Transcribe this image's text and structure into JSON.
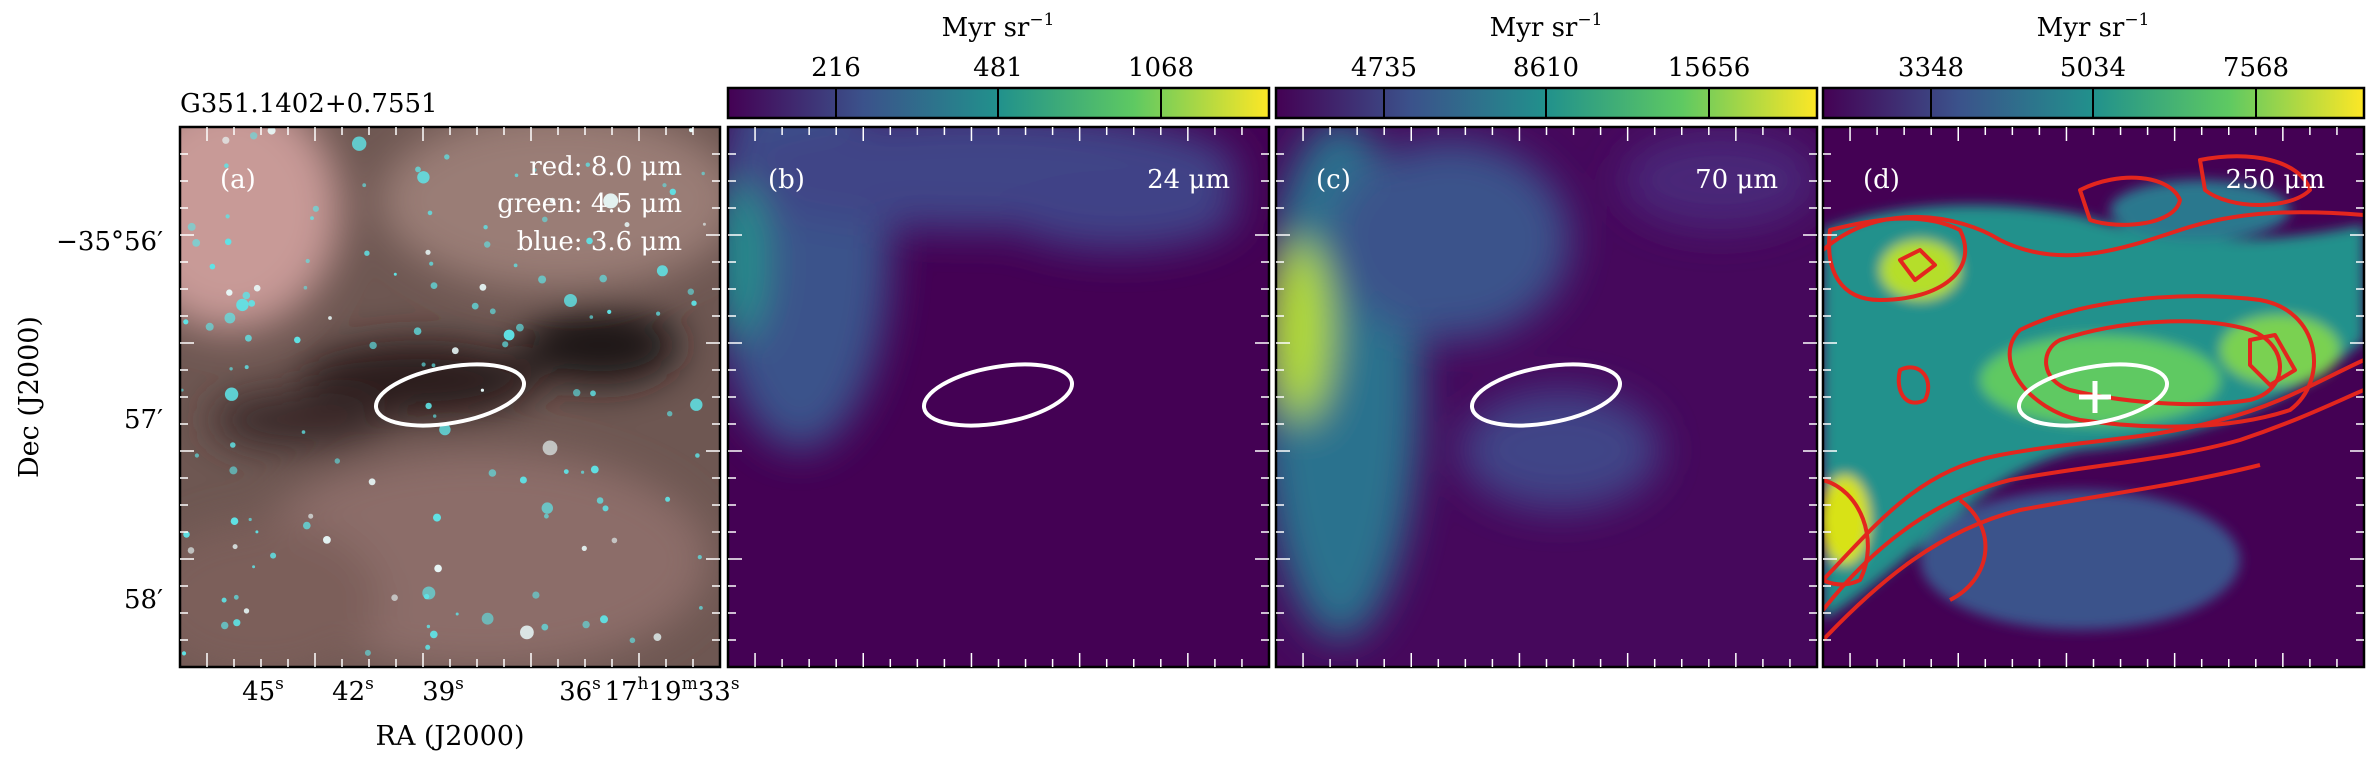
{
  "figure": {
    "source_name": "G351.1402+0.7551",
    "x_axis_label": "RA (J2000)",
    "y_axis_label": "Dec (J2000)",
    "x_ticks": [
      "45",
      "42",
      "39",
      "36",
      "17",
      "33"
    ],
    "x_tick_superscripts": [
      "s",
      "s",
      "s",
      "s",
      "h",
      "s"
    ],
    "x_tick_hour_minute": {
      "hour_sup": "h",
      "minute": "19",
      "minute_sup": "m"
    },
    "y_ticks": [
      "−35°56′",
      "57′",
      "58′"
    ]
  },
  "panels": [
    {
      "letter": "(a)",
      "legend": [
        "red: 8.0 μm",
        "green: 4.5 μm",
        "blue: 3.6 μm"
      ],
      "colorbar": null
    },
    {
      "letter": "(b)",
      "wavelength": "24 μm",
      "colorbar": {
        "unit": "Myr sr",
        "unit_exp": "−1",
        "ticks": [
          "216",
          "481",
          "1068"
        ]
      }
    },
    {
      "letter": "(c)",
      "wavelength": "70 μm",
      "colorbar": {
        "unit": "Myr sr",
        "unit_exp": "−1",
        "ticks": [
          "4735",
          "8610",
          "15656"
        ]
      }
    },
    {
      "letter": "(d)",
      "wavelength": "250 μm",
      "colorbar": {
        "unit": "Myr sr",
        "unit_exp": "−1",
        "ticks": [
          "3348",
          "5034",
          "7568"
        ]
      }
    }
  ],
  "colors": {
    "ellipse": "#ffffff",
    "contour": "#e3261e",
    "frame": "#000000",
    "viridis": [
      "#440154",
      "#3b528b",
      "#21918c",
      "#5ec962",
      "#fde725"
    ]
  }
}
